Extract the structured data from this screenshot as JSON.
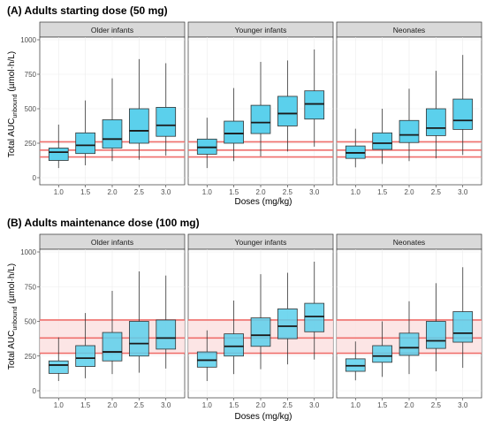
{
  "chart_data": [
    {
      "type": "boxplot",
      "title": "(A) Adults starting dose (50 mg)",
      "xlabel": "Doses (mg/kg)",
      "ylabel_main": "Total AUC",
      "ylabel_sub": "unbound",
      "ylabel_unit": " (µmol·h/L)",
      "ylim": [
        0,
        1000
      ],
      "yticks": [
        "0",
        "250",
        "500",
        "750",
        "1000"
      ],
      "categories": [
        "1.0",
        "1.5",
        "2.0",
        "2.5",
        "3.0"
      ],
      "reference": {
        "lines": [
          150,
          200,
          260
        ],
        "band": [
          150,
          260
        ],
        "line_color": "#ef6f6c",
        "band_color": "#fbe1e1"
      },
      "box_color": "#5bd0ec",
      "panels": [
        {
          "name": "Older infants",
          "boxes": [
            {
              "min": 70,
              "q1": 125,
              "median": 185,
              "q3": 215,
              "max": 385
            },
            {
              "min": 90,
              "q1": 175,
              "median": 235,
              "q3": 325,
              "max": 560
            },
            {
              "min": 120,
              "q1": 215,
              "median": 280,
              "q3": 420,
              "max": 720
            },
            {
              "min": 130,
              "q1": 250,
              "median": 340,
              "q3": 500,
              "max": 860
            },
            {
              "min": 160,
              "q1": 300,
              "median": 380,
              "q3": 510,
              "max": 830
            }
          ]
        },
        {
          "name": "Younger infants",
          "boxes": [
            {
              "min": 70,
              "q1": 170,
              "median": 220,
              "q3": 280,
              "max": 435
            },
            {
              "min": 120,
              "q1": 250,
              "median": 320,
              "q3": 410,
              "max": 650
            },
            {
              "min": 155,
              "q1": 320,
              "median": 400,
              "q3": 525,
              "max": 840
            },
            {
              "min": 190,
              "q1": 375,
              "median": 465,
              "q3": 590,
              "max": 850
            },
            {
              "min": 225,
              "q1": 425,
              "median": 535,
              "q3": 630,
              "max": 930
            }
          ]
        },
        {
          "name": "Neonates",
          "boxes": [
            {
              "min": 75,
              "q1": 140,
              "median": 180,
              "q3": 230,
              "max": 355
            },
            {
              "min": 100,
              "q1": 205,
              "median": 250,
              "q3": 325,
              "max": 500
            },
            {
              "min": 120,
              "q1": 255,
              "median": 310,
              "q3": 415,
              "max": 645
            },
            {
              "min": 140,
              "q1": 305,
              "median": 360,
              "q3": 500,
              "max": 775
            },
            {
              "min": 165,
              "q1": 350,
              "median": 415,
              "q3": 570,
              "max": 890
            }
          ]
        }
      ]
    },
    {
      "type": "boxplot",
      "title": "(B) Adults maintenance dose (100 mg)",
      "xlabel": "Doses (mg/kg)",
      "ylabel_main": "Total AUC",
      "ylabel_sub": "unbound",
      "ylabel_unit": " (µmol·h/L)",
      "ylim": [
        0,
        1000
      ],
      "yticks": [
        "0",
        "250",
        "500",
        "750",
        "1000"
      ],
      "categories": [
        "1.0",
        "1.5",
        "2.0",
        "2.5",
        "3.0"
      ],
      "reference": {
        "lines": [
          270,
          380,
          510
        ],
        "band": [
          270,
          510
        ],
        "line_color": "#ef6f6c",
        "band_color": "#fbe1e1"
      },
      "box_color": "#5bd0ec",
      "panels": [
        {
          "name": "Older infants",
          "boxes": [
            {
              "min": 70,
              "q1": 125,
              "median": 185,
              "q3": 215,
              "max": 385
            },
            {
              "min": 90,
              "q1": 175,
              "median": 235,
              "q3": 325,
              "max": 560
            },
            {
              "min": 120,
              "q1": 215,
              "median": 280,
              "q3": 420,
              "max": 720
            },
            {
              "min": 130,
              "q1": 250,
              "median": 340,
              "q3": 500,
              "max": 860
            },
            {
              "min": 160,
              "q1": 300,
              "median": 380,
              "q3": 510,
              "max": 830
            }
          ]
        },
        {
          "name": "Younger infants",
          "boxes": [
            {
              "min": 70,
              "q1": 170,
              "median": 220,
              "q3": 280,
              "max": 435
            },
            {
              "min": 120,
              "q1": 250,
              "median": 320,
              "q3": 410,
              "max": 650
            },
            {
              "min": 155,
              "q1": 320,
              "median": 400,
              "q3": 525,
              "max": 840
            },
            {
              "min": 190,
              "q1": 375,
              "median": 465,
              "q3": 590,
              "max": 850
            },
            {
              "min": 225,
              "q1": 425,
              "median": 535,
              "q3": 630,
              "max": 930
            }
          ]
        },
        {
          "name": "Neonates",
          "boxes": [
            {
              "min": 75,
              "q1": 140,
              "median": 180,
              "q3": 230,
              "max": 355
            },
            {
              "min": 100,
              "q1": 205,
              "median": 250,
              "q3": 325,
              "max": 500
            },
            {
              "min": 120,
              "q1": 255,
              "median": 310,
              "q3": 415,
              "max": 645
            },
            {
              "min": 140,
              "q1": 305,
              "median": 360,
              "q3": 500,
              "max": 775
            },
            {
              "min": 165,
              "q1": 350,
              "median": 415,
              "q3": 570,
              "max": 890
            }
          ]
        }
      ]
    }
  ]
}
